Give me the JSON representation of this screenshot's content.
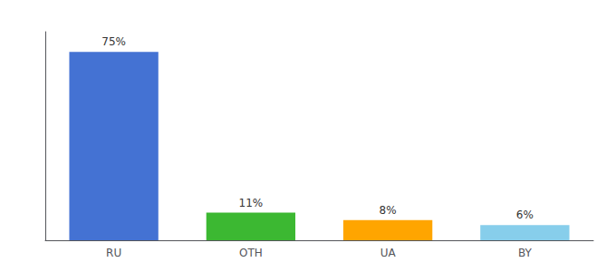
{
  "chart_data": {
    "type": "bar",
    "categories": [
      "RU",
      "OTH",
      "UA",
      "BY"
    ],
    "values": [
      75,
      11,
      8,
      6
    ],
    "value_labels": [
      "75%",
      "11%",
      "8%",
      "6%"
    ],
    "colors": [
      "#4472D3",
      "#3CB832",
      "#FFA500",
      "#87CEEB"
    ],
    "ylim": [
      0,
      83
    ],
    "data_labels": true,
    "tick_labels": "x",
    "grid": false
  }
}
